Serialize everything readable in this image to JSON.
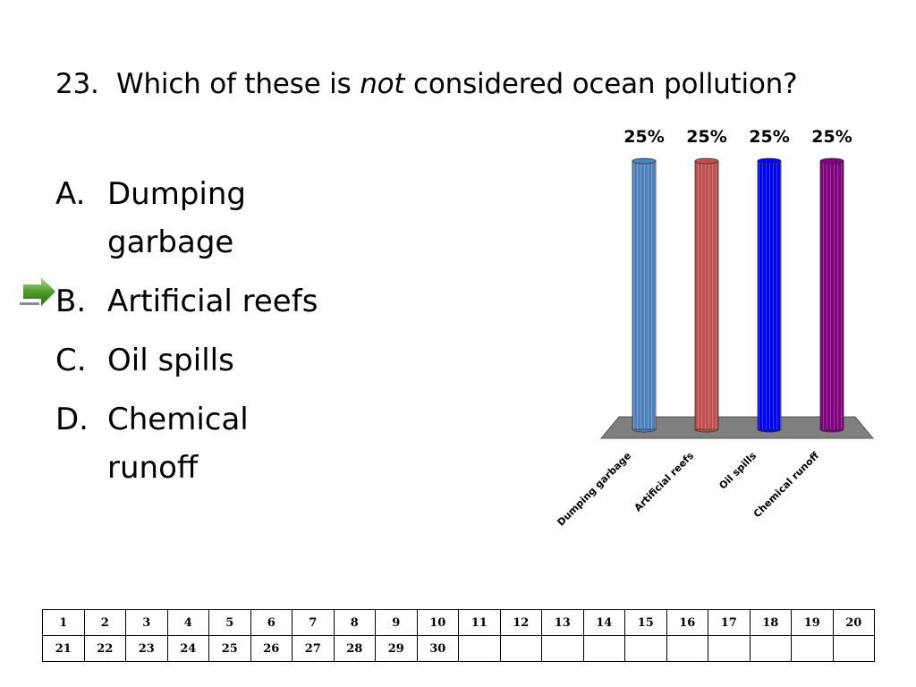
{
  "question": {
    "number": "23.",
    "text_before": "Which of these is ",
    "text_emphasis": "not",
    "text_after": " considered ocean pollution?"
  },
  "answers": [
    {
      "letter": "A.",
      "text": "Dumping garbage"
    },
    {
      "letter": "B.",
      "text": "Artificial reefs"
    },
    {
      "letter": "C.",
      "text": "Oil spills"
    },
    {
      "letter": "D.",
      "text": "Chemical runoff"
    }
  ],
  "correct_answer_icon": "green-arrow-icon",
  "chart_data": {
    "type": "bar",
    "categories": [
      "Dumping garbage",
      "Artificial reefs",
      "Oil spills",
      "Chemical runoff"
    ],
    "values": [
      25,
      25,
      25,
      25
    ],
    "value_labels": [
      "25%",
      "25%",
      "25%",
      "25%"
    ],
    "colors": [
      "#4f81bd",
      "#c0504d",
      "#0000ff",
      "#800080"
    ],
    "ylim": [
      0,
      25
    ],
    "floor_color": "#7f7f7f"
  },
  "question_grid": {
    "rows": [
      [
        "1",
        "2",
        "3",
        "4",
        "5",
        "6",
        "7",
        "8",
        "9",
        "10",
        "11",
        "12",
        "13",
        "14",
        "15",
        "16",
        "17",
        "18",
        "19",
        "20"
      ],
      [
        "21",
        "22",
        "23",
        "24",
        "25",
        "26",
        "27",
        "28",
        "29",
        "30",
        "",
        "",
        "",
        "",
        "",
        "",
        "",
        "",
        "",
        ""
      ]
    ]
  }
}
